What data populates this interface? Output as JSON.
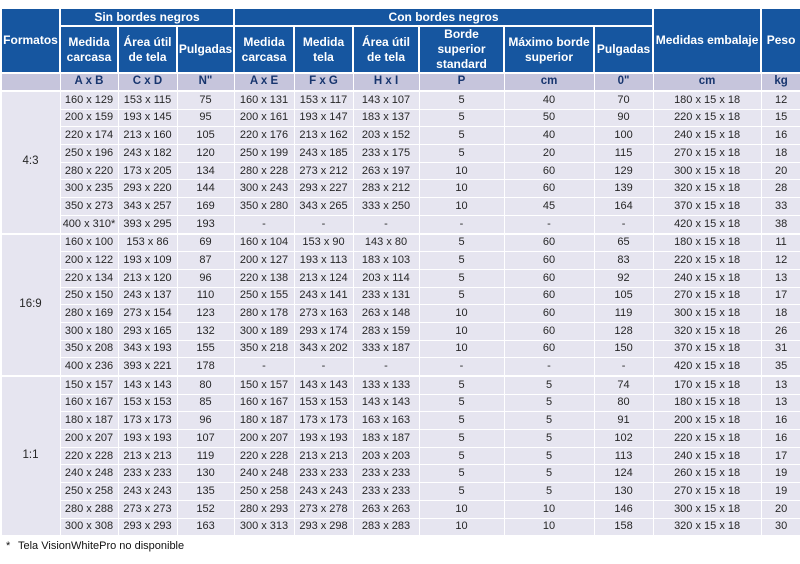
{
  "table": {
    "top_headers": {
      "formatos": "Formatos",
      "sin_bordes": "Sin bordes negros",
      "con_bordes": "Con bordes negros",
      "embalaje": "Medidas embalaje",
      "peso": "Peso"
    },
    "col_headers": [
      "Medida carcasa",
      "Área útil de tela",
      "Pulgadas",
      "Medida carcasa",
      "Medida tela",
      "Área útil de tela",
      "Borde superior standard",
      "Máximo borde superior",
      "Pulgadas"
    ],
    "sub_headers": [
      "",
      "A x B",
      "C x D",
      "N\"",
      "A x E",
      "F x G",
      "H x I",
      "P",
      "cm",
      "0\"",
      "cm",
      "kg"
    ],
    "groups": [
      {
        "format": "4:3",
        "rows": [
          [
            "160 x 129",
            "153 x 115",
            "75",
            "160 x 131",
            "153 x 117",
            "143 x 107",
            "5",
            "40",
            "70",
            "180 x 15 x 18",
            "12"
          ],
          [
            "200 x 159",
            "193 x 145",
            "95",
            "200 x 161",
            "193 x 147",
            "183 x 137",
            "5",
            "50",
            "90",
            "220 x 15 x 18",
            "15"
          ],
          [
            "220 x 174",
            "213 x 160",
            "105",
            "220 x 176",
            "213 x 162",
            "203 x 152",
            "5",
            "40",
            "100",
            "240 x 15 x 18",
            "16"
          ],
          [
            "250 x 196",
            "243 x 182",
            "120",
            "250 x 199",
            "243 x 185",
            "233 x 175",
            "5",
            "20",
            "115",
            "270 x 15 x 18",
            "18"
          ],
          [
            "280 x 220",
            "173 x 205",
            "134",
            "280 x 228",
            "273 x 212",
            "263 x 197",
            "10",
            "60",
            "129",
            "300 x 15 x 18",
            "20"
          ],
          [
            "300 x 235",
            "293 x 220",
            "144",
            "300 x 243",
            "293 x 227",
            "283 x 212",
            "10",
            "60",
            "139",
            "320 x 15 x 18",
            "28"
          ],
          [
            "350 x 273",
            "343 x 257",
            "169",
            "350 x 280",
            "343 x 265",
            "333 x 250",
            "10",
            "45",
            "164",
            "370 x 15 x 18",
            "33"
          ],
          [
            "400 x 310*",
            "393 x 295",
            "193",
            "-",
            "-",
            "-",
            "-",
            "-",
            "-",
            "420 x 15 x 18",
            "38"
          ]
        ]
      },
      {
        "format": "16:9",
        "rows": [
          [
            "160 x 100",
            "153 x 86",
            "69",
            "160 x 104",
            "153 x 90",
            "143 x 80",
            "5",
            "60",
            "65",
            "180 x 15 x 18",
            "11"
          ],
          [
            "200 x 122",
            "193 x 109",
            "87",
            "200 x 127",
            "193 x 113",
            "183 x 103",
            "5",
            "60",
            "83",
            "220 x 15 x 18",
            "12"
          ],
          [
            "220 x 134",
            "213 x 120",
            "96",
            "220 x 138",
            "213 x 124",
            "203 x 114",
            "5",
            "60",
            "92",
            "240 x 15 x 18",
            "13"
          ],
          [
            "250 x 150",
            "243 x 137",
            "110",
            "250 x 155",
            "243 x 141",
            "233 x 131",
            "5",
            "60",
            "105",
            "270 x 15 x 18",
            "17"
          ],
          [
            "280 x 169",
            "273 x 154",
            "123",
            "280 x 178",
            "273 x 163",
            "263 x 148",
            "10",
            "60",
            "119",
            "300 x 15 x 18",
            "18"
          ],
          [
            "300 x 180",
            "293 x 165",
            "132",
            "300 x 189",
            "293 x 174",
            "283 x 159",
            "10",
            "60",
            "128",
            "320 x 15 x 18",
            "26"
          ],
          [
            "350 x 208",
            "343 x 193",
            "155",
            "350 x 218",
            "343 x 202",
            "333 x 187",
            "10",
            "60",
            "150",
            "370 x 15 x 18",
            "31"
          ],
          [
            "400 x 236",
            "393 x 221",
            "178",
            "-",
            "-",
            "-",
            "-",
            "-",
            "-",
            "420 x 15 x 18",
            "35"
          ]
        ]
      },
      {
        "format": "1:1",
        "rows": [
          [
            "150 x 157",
            "143 x 143",
            "80",
            "150 x 157",
            "143 x 143",
            "133 x 133",
            "5",
            "5",
            "74",
            "170 x 15 x 18",
            "13"
          ],
          [
            "160 x 167",
            "153 x 153",
            "85",
            "160 x 167",
            "153 x 153",
            "143 x 143",
            "5",
            "5",
            "80",
            "180 x 15 x 18",
            "13"
          ],
          [
            "180 x 187",
            "173 x 173",
            "96",
            "180 x 187",
            "173 x 173",
            "163 x 163",
            "5",
            "5",
            "91",
            "200 x 15 x 18",
            "16"
          ],
          [
            "200 x 207",
            "193 x 193",
            "107",
            "200 x 207",
            "193 x 193",
            "183 x 187",
            "5",
            "5",
            "102",
            "220 x 15 x 18",
            "16"
          ],
          [
            "220 x 228",
            "213 x 213",
            "119",
            "220 x 228",
            "213 x 213",
            "203 x 203",
            "5",
            "5",
            "113",
            "240 x 15 x 18",
            "17"
          ],
          [
            "240 x 248",
            "233 x 233",
            "130",
            "240 x 248",
            "233 x 233",
            "233 x 233",
            "5",
            "5",
            "124",
            "260 x 15 x 18",
            "19"
          ],
          [
            "250 x 258",
            "243 x 243",
            "135",
            "250 x 258",
            "243 x 243",
            "233 x 233",
            "5",
            "5",
            "130",
            "270 x 15 x 18",
            "19"
          ],
          [
            "280 x 288",
            "273 x 273",
            "152",
            "280 x 293",
            "273 x 278",
            "263 x 263",
            "10",
            "10",
            "146",
            "300 x 15 x 18",
            "20"
          ],
          [
            "300 x 308",
            "293 x 293",
            "163",
            "300 x 313",
            "293 x 298",
            "283 x 283",
            "10",
            "10",
            "158",
            "320 x 15 x 18",
            "30"
          ]
        ]
      }
    ]
  },
  "footnote": {
    "marker": "*",
    "text": "Tela VisionWhitePro no disponible"
  },
  "colors": {
    "header_bg": "#1656A0",
    "subheader_bg": "#C6C5DC",
    "row_bg": "#E6E5F0",
    "header_text": "#FFFFFF",
    "subheader_text": "#17356E",
    "cell_text": "#262626"
  }
}
